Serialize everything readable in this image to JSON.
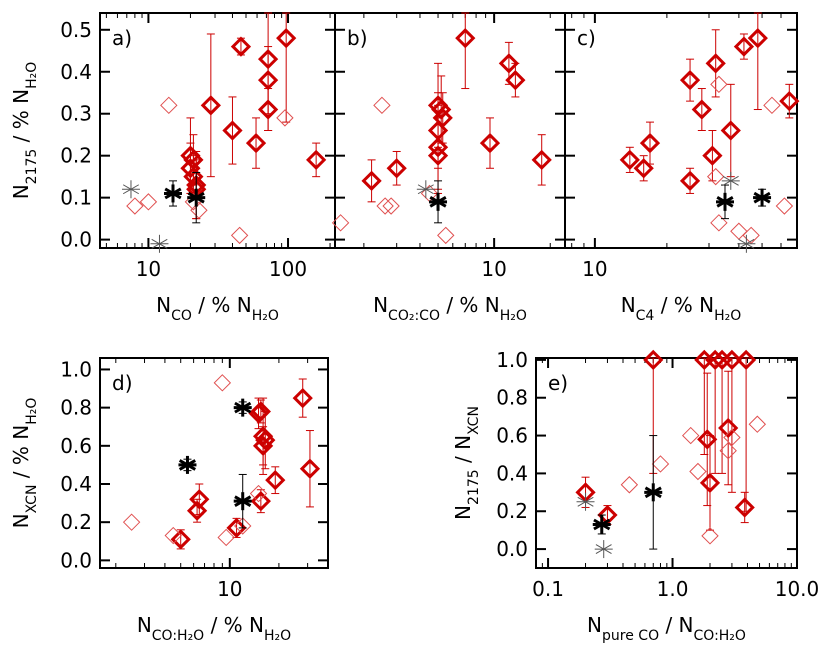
{
  "chart_data": [
    {
      "type": "scatter",
      "panel_label": "a)",
      "xscale": "log",
      "xlim": [
        4.5,
        217
      ],
      "ylim": [
        -0.02,
        0.54
      ],
      "xticks": [
        10,
        100
      ],
      "yticks": [
        {
          "value": 0,
          "label": "0.0"
        },
        {
          "value": 0.1,
          "label": "0.1"
        },
        {
          "value": 0.2,
          "label": "0.2"
        },
        {
          "value": 0.3,
          "label": "0.3"
        },
        {
          "value": 0.4,
          "label": "0.4"
        },
        {
          "value": 0.5,
          "label": "0.5"
        }
      ],
      "xlabel": [
        {
          "text": "N"
        },
        {
          "text": "CO",
          "sub": true
        },
        {
          "text": " / % N"
        },
        {
          "text": "H₂O",
          "sub": true
        }
      ],
      "ylabel": [
        {
          "text": "N"
        },
        {
          "text": "2175",
          "sub": true
        },
        {
          "text": " / % N"
        },
        {
          "text": "H₂O",
          "sub": true
        }
      ],
      "series": [
        {
          "marker": "diamond-bold",
          "color": "#cc0000",
          "x": [
            28,
            40,
            46,
            59,
            72,
            72,
            72,
            97,
            159,
            20,
            21,
            21,
            22,
            22,
            20
          ],
          "y": [
            0.32,
            0.26,
            0.46,
            0.23,
            0.43,
            0.38,
            0.31,
            0.48,
            0.19,
            0.17,
            0.19,
            0.15,
            0.13,
            0.12,
            0.2
          ],
          "yerr": [
            0.17,
            0.08,
            0.02,
            0.06,
            0.17,
            0.08,
            0.05,
            0.2,
            0.04,
            0.06,
            0.06,
            0.05,
            0.08,
            0.07,
            0.09
          ]
        },
        {
          "marker": "diamond-thin",
          "color": "#e05050",
          "x": [
            8,
            10,
            14,
            21,
            23,
            45,
            95
          ],
          "y": [
            0.08,
            0.09,
            0.32,
            0.09,
            0.07,
            0.01,
            0.29
          ]
        },
        {
          "marker": "asterisk-bold",
          "color": "#000000",
          "x": [
            15,
            22
          ],
          "y": [
            0.11,
            0.1
          ],
          "yerr": [
            0.03,
            0.06
          ]
        },
        {
          "marker": "asterisk-thin",
          "color": "#555555",
          "x": [
            7.5,
            12
          ],
          "y": [
            0.12,
            -0.01
          ]
        }
      ]
    },
    {
      "type": "scatter",
      "panel_label": "b)",
      "xscale": "log",
      "xlim": [
        1.4,
        24
      ],
      "ylim": [
        -0.02,
        0.54
      ],
      "xticks": [
        10
      ],
      "yticks": [
        0,
        0.1,
        0.2,
        0.3,
        0.4,
        0.5
      ],
      "xlabel": [
        {
          "text": "N"
        },
        {
          "text": "CO₂:CO",
          "sub": true
        },
        {
          "text": " / % N"
        },
        {
          "text": "H₂O",
          "sub": true
        }
      ],
      "series": [
        {
          "marker": "diamond-bold",
          "color": "#cc0000",
          "x": [
            2.2,
            3,
            5,
            5.2,
            5.3,
            5,
            5,
            7,
            9.5,
            12,
            13,
            18,
            5
          ],
          "y": [
            0.14,
            0.17,
            0.32,
            0.31,
            0.29,
            0.26,
            0.2,
            0.48,
            0.23,
            0.42,
            0.38,
            0.19,
            0.22
          ],
          "yerr": [
            0.05,
            0.04,
            0.1,
            0.08,
            0.06,
            0.09,
            0.09,
            0.12,
            0.06,
            0.05,
            0.04,
            0.06,
            0.1
          ]
        },
        {
          "marker": "diamond-thin",
          "color": "#e05050",
          "x": [
            1.5,
            2.5,
            2.6,
            2.8,
            5.5,
            4.5
          ],
          "y": [
            0.04,
            0.32,
            0.08,
            0.08,
            0.01,
            0.11
          ]
        },
        {
          "marker": "asterisk-bold",
          "color": "#000000",
          "x": [
            5
          ],
          "y": [
            0.09
          ],
          "yerr": [
            0.05
          ]
        },
        {
          "marker": "asterisk-thin",
          "color": "#555555",
          "x": [
            4.3
          ],
          "y": [
            0.12
          ]
        }
      ]
    },
    {
      "type": "scatter",
      "panel_label": "c)",
      "xscale": "log",
      "xlim": [
        7.5,
        70
      ],
      "ylim": [
        -0.02,
        0.54
      ],
      "xticks": [
        10
      ],
      "yticks": [
        0,
        0.1,
        0.2,
        0.3,
        0.4,
        0.5
      ],
      "xlabel": [
        {
          "text": "N"
        },
        {
          "text": "C4",
          "sub": true
        },
        {
          "text": " / % N"
        },
        {
          "text": "H₂O",
          "sub": true
        }
      ],
      "series": [
        {
          "marker": "diamond-bold",
          "color": "#cc0000",
          "x": [
            14,
            16,
            17,
            25,
            25,
            28,
            31,
            32,
            37,
            42,
            48,
            65
          ],
          "y": [
            0.19,
            0.17,
            0.23,
            0.38,
            0.14,
            0.31,
            0.2,
            0.42,
            0.26,
            0.46,
            0.48,
            0.33
          ],
          "yerr": [
            0.03,
            0.03,
            0.05,
            0.05,
            0.03,
            0.05,
            0.06,
            0.08,
            0.11,
            0.03,
            0.17,
            0.04
          ]
        },
        {
          "marker": "diamond-thin",
          "color": "#e05050",
          "x": [
            33,
            32,
            33,
            45,
            55,
            62,
            40
          ],
          "y": [
            0.37,
            0.15,
            0.04,
            0.01,
            0.32,
            0.08,
            0.02
          ]
        },
        {
          "marker": "asterisk-bold",
          "color": "#000000",
          "x": [
            35,
            50
          ],
          "y": [
            0.09,
            0.1
          ],
          "yerr": [
            0.04,
            0.02
          ]
        },
        {
          "marker": "asterisk-thin",
          "color": "#555555",
          "x": [
            37,
            43
          ],
          "y": [
            0.14,
            -0.01
          ]
        }
      ]
    },
    {
      "type": "scatter",
      "panel_label": "d)",
      "xscale": "log",
      "xlim": [
        1.6,
        40
      ],
      "ylim": [
        -0.04,
        1.06
      ],
      "xticks": [
        10
      ],
      "yticks": [
        {
          "value": 0,
          "label": "0.0"
        },
        {
          "value": 0.2,
          "label": "0.2"
        },
        {
          "value": 0.4,
          "label": "0.4"
        },
        {
          "value": 0.6,
          "label": "0.6"
        },
        {
          "value": 0.8,
          "label": "0.8"
        },
        {
          "value": 1,
          "label": "1.0"
        }
      ],
      "xlabel": [
        {
          "text": "N"
        },
        {
          "text": "CO:H₂O",
          "sub": true
        },
        {
          "text": " / % N"
        },
        {
          "text": "H₂O",
          "sub": true
        }
      ],
      "ylabel": [
        {
          "text": "N"
        },
        {
          "text": "XCN",
          "sub": true
        },
        {
          "text": " / % N"
        },
        {
          "text": "H₂O",
          "sub": true
        }
      ],
      "series": [
        {
          "marker": "diamond-bold",
          "color": "#cc0000",
          "x": [
            5,
            6.5,
            6.3,
            11,
            15,
            15.5,
            16,
            16.5,
            16,
            15.5,
            19,
            28,
            31
          ],
          "y": [
            0.11,
            0.32,
            0.26,
            0.17,
            0.77,
            0.78,
            0.65,
            0.63,
            0.6,
            0.31,
            0.42,
            0.85,
            0.48
          ],
          "yerr": [
            0.05,
            0.08,
            0.06,
            0.05,
            0.08,
            0.06,
            0.2,
            0.15,
            0.1,
            0.06,
            0.07,
            0.1,
            0.2
          ]
        },
        {
          "marker": "diamond-thin",
          "color": "#e05050",
          "x": [
            2.5,
            4.5,
            9,
            9.5,
            12,
            15
          ],
          "y": [
            0.2,
            0.13,
            0.93,
            0.12,
            0.18,
            0.35
          ]
        },
        {
          "marker": "asterisk-bold",
          "color": "#000000",
          "x": [
            5.5,
            12,
            12
          ],
          "y": [
            0.5,
            0.8,
            0.31
          ],
          "yerr": [
            0.03,
            0.03,
            0.14
          ]
        }
      ]
    },
    {
      "type": "scatter",
      "panel_label": "e)",
      "xscale": "log",
      "xlim": [
        0.08,
        10
      ],
      "ylim": [
        -0.1,
        1.01
      ],
      "xticks": [
        {
          "value": 0.1,
          "label": "0.1"
        },
        {
          "value": 1,
          "label": "1.0"
        },
        {
          "value": 10,
          "label": "10.0"
        }
      ],
      "yticks": [
        {
          "value": 0,
          "label": "0.0"
        },
        {
          "value": 0.2,
          "label": "0.2"
        },
        {
          "value": 0.4,
          "label": "0.4"
        },
        {
          "value": 0.6,
          "label": "0.6"
        },
        {
          "value": 0.8,
          "label": "0.8"
        },
        {
          "value": 1,
          "label": "1.0"
        }
      ],
      "xlabel": [
        {
          "text": "N"
        },
        {
          "text": "pure CO",
          "sub": true
        },
        {
          "text": " / N"
        },
        {
          "text": "CO:H₂O",
          "sub": true
        }
      ],
      "ylabel": [
        {
          "text": "N"
        },
        {
          "text": "2175",
          "sub": true
        },
        {
          "text": " / N"
        },
        {
          "text": "XCN",
          "sub": true
        }
      ],
      "series": [
        {
          "marker": "diamond-bold",
          "color": "#cc0000",
          "x": [
            0.2,
            0.3,
            0.7,
            1.9,
            2.0,
            1.8,
            2.2,
            2.5,
            2.8,
            3.0,
            3.9,
            3.8
          ],
          "y": [
            0.3,
            0.18,
            1.0,
            0.58,
            0.35,
            1.0,
            1.0,
            1.0,
            0.64,
            1.0,
            1.0,
            0.22
          ],
          "yerr": [
            0.08,
            0.05,
            0.6,
            0.35,
            0.25,
            0.5,
            0.6,
            0.6,
            0.3,
            0.7,
            0.8,
            0.08
          ]
        },
        {
          "marker": "diamond-thin",
          "color": "#e05050",
          "x": [
            0.45,
            0.8,
            1.4,
            1.6,
            2.0,
            2.8,
            3.0,
            4.8
          ],
          "y": [
            0.34,
            0.45,
            0.6,
            0.41,
            0.07,
            0.52,
            0.59,
            0.66
          ]
        },
        {
          "marker": "asterisk-bold",
          "color": "#000000",
          "x": [
            0.27,
            0.7
          ],
          "y": [
            0.13,
            0.3
          ],
          "yerr": [
            0.05,
            0.3
          ]
        },
        {
          "marker": "asterisk-thin",
          "color": "#555555",
          "x": [
            0.2,
            0.28
          ],
          "y": [
            0.25,
            0.0
          ]
        }
      ]
    }
  ]
}
